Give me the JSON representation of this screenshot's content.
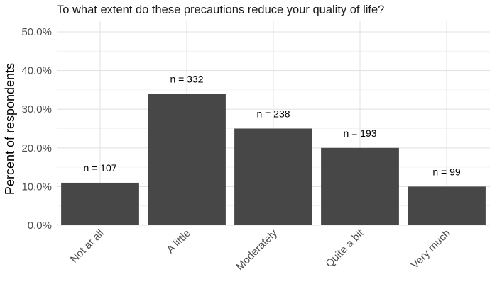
{
  "chart_data": {
    "type": "bar",
    "title": "To what extent do these precautions reduce your quality of life?",
    "xlabel": "",
    "ylabel": "Percent of respondents",
    "categories": [
      "Not at all",
      "A little",
      "Moderately",
      "Quite a bit",
      "Very much"
    ],
    "values": [
      11,
      34,
      25,
      20,
      10
    ],
    "data_labels": [
      "n = 107",
      "n = 332",
      "n = 238",
      "n = 193",
      "n = 99"
    ],
    "ylim": [
      0,
      50
    ],
    "yticks": [
      0,
      10,
      20,
      30,
      40,
      50
    ],
    "ytick_labels": [
      "0.0%",
      "10.0%",
      "20.0%",
      "30.0%",
      "40.0%",
      "50.0%"
    ],
    "grid": true,
    "bar_color": "#474747"
  }
}
